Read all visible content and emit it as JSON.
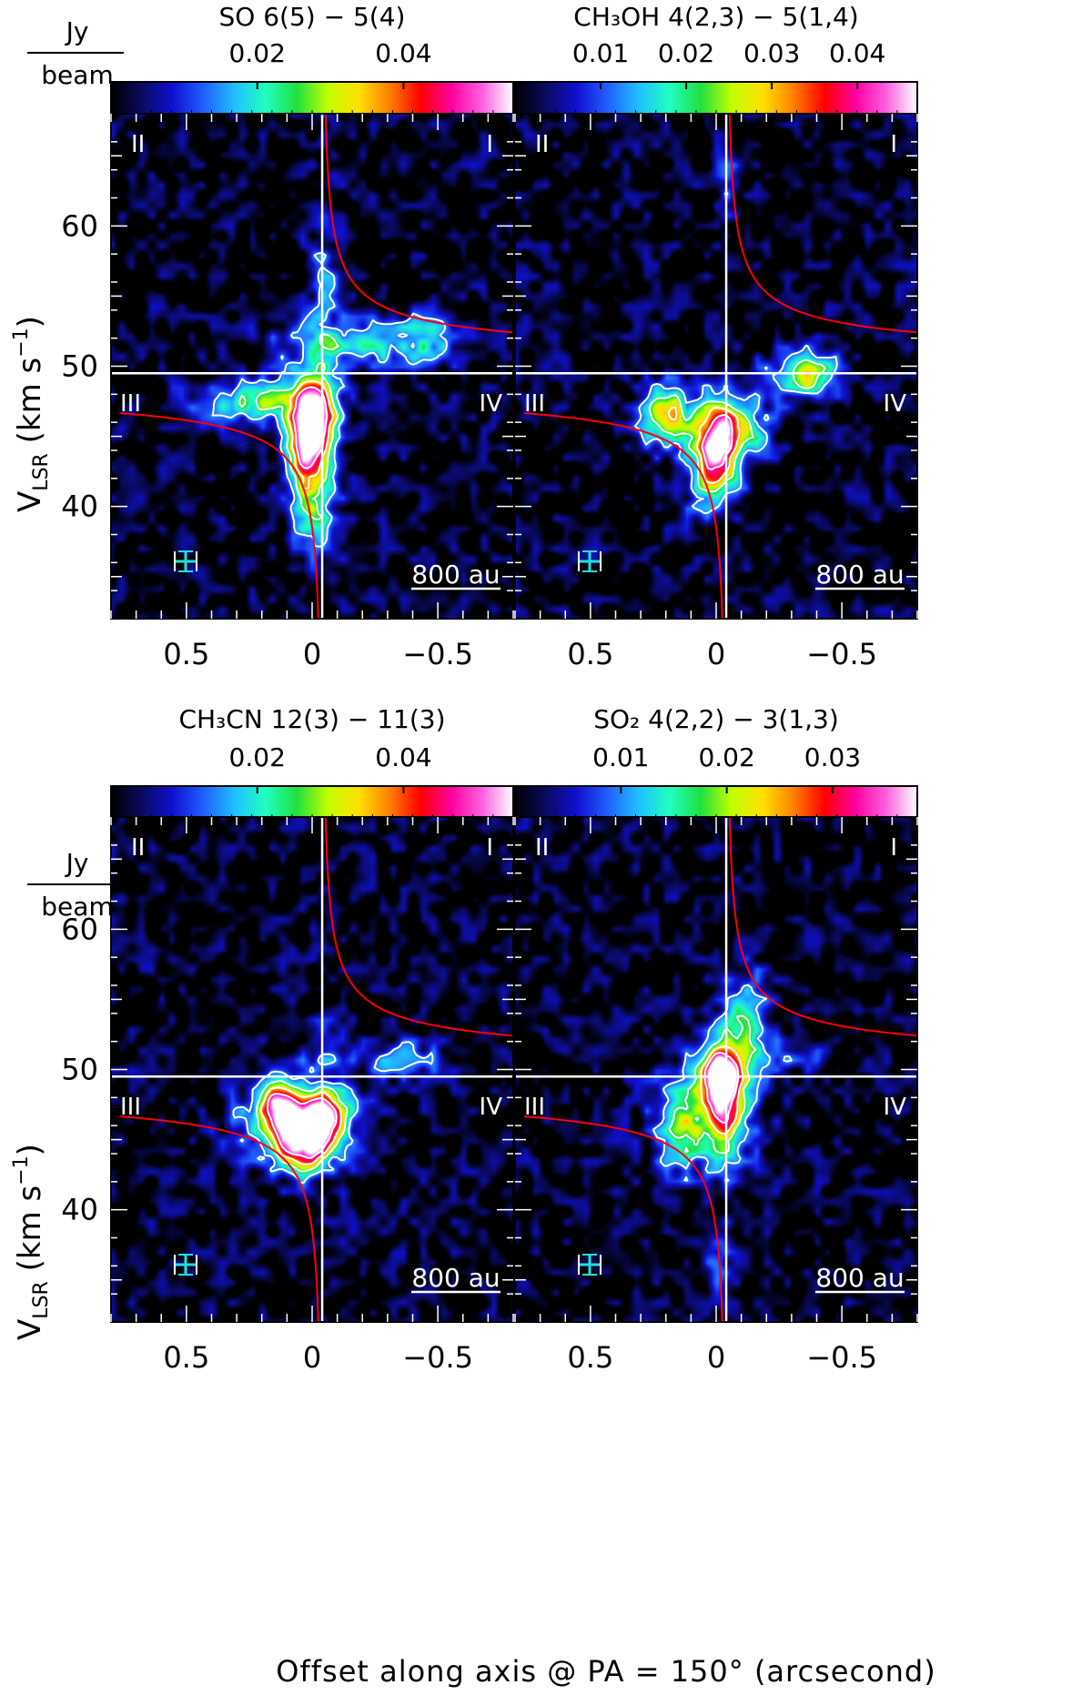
{
  "figure": {
    "xlabel": "Offset along axis @ PA = 150° (arcsecond)",
    "ylabel_main": "V",
    "ylabel_sub": "LSR",
    "ylabel_unit": "(km s",
    "ylabel_exp": "−1",
    "ylabel_close": ")",
    "unit_top": "Jy",
    "unit_bottom": "beam",
    "scalebar_label": "800 au",
    "quadrants": [
      "I",
      "II",
      "III",
      "IV"
    ],
    "colormap": [
      "#000000",
      "#0a0a60",
      "#1010d0",
      "#2060ff",
      "#20c0ff",
      "#20ffc0",
      "#20e040",
      "#c0ff00",
      "#ffe000",
      "#ff8000",
      "#ff0000",
      "#ff00a0",
      "#ff60e0",
      "#ffffff"
    ],
    "curve_color": "#ff0000",
    "axes_line_color": "#ffffff",
    "beam_color": "#20e0e0"
  },
  "chart_data": [
    {
      "type": "heatmap",
      "title": "SO  6(5) − 5(4)",
      "colorbar_ticks": [
        "0.02",
        "0.04"
      ],
      "colorbar_tick_values": [
        0.02,
        0.04
      ],
      "colorbar_range": [
        0.0,
        0.055
      ],
      "xlim": [
        0.8,
        -0.8
      ],
      "ylim": [
        32,
        68
      ],
      "xticks": [
        "0.5",
        "0",
        "−0.5"
      ],
      "xtick_values": [
        0.5,
        0,
        -0.5
      ],
      "yticks": [
        "60",
        "50",
        "40"
      ],
      "ytick_values": [
        60,
        50,
        40
      ],
      "systemic_velocity": 49.5,
      "center_offset": -0.04,
      "emission": [
        {
          "x": -0.01,
          "v": 46.0,
          "sx": 0.06,
          "sv": 2.2,
          "amp": 0.05
        },
        {
          "x": 0.02,
          "v": 44.0,
          "sx": 0.06,
          "sv": 3.0,
          "amp": 0.03
        },
        {
          "x": 0.22,
          "v": 47.5,
          "sx": 0.16,
          "sv": 1.0,
          "amp": 0.025
        },
        {
          "x": -0.15,
          "v": 51.5,
          "sx": 0.22,
          "sv": 1.3,
          "amp": 0.016
        },
        {
          "x": -0.45,
          "v": 52.0,
          "sx": 0.1,
          "sv": 1.2,
          "amp": 0.013
        },
        {
          "x": -0.05,
          "v": 56.0,
          "sx": 0.05,
          "sv": 4.0,
          "amp": 0.011
        },
        {
          "x": -0.02,
          "v": 39.5,
          "sx": 0.06,
          "sv": 2.5,
          "amp": 0.014
        }
      ]
    },
    {
      "type": "heatmap",
      "title": "CH₃OH  4(2,3) − 5(1,4)",
      "colorbar_ticks": [
        "0.01",
        "0.02",
        "0.03",
        "0.04"
      ],
      "colorbar_tick_values": [
        0.01,
        0.02,
        0.03,
        0.04
      ],
      "colorbar_range": [
        0.0,
        0.047
      ],
      "xlim": [
        0.8,
        -0.8
      ],
      "ylim": [
        32,
        68
      ],
      "xticks": [
        "0.5",
        "0",
        "−0.5"
      ],
      "xtick_values": [
        0.5,
        0,
        -0.5
      ],
      "yticks": [
        "60",
        "50",
        "40"
      ],
      "ytick_values": [
        60,
        50,
        40
      ],
      "systemic_velocity": 49.5,
      "center_offset": -0.04,
      "emission": [
        {
          "x": 0.0,
          "v": 44.5,
          "sx": 0.06,
          "sv": 2.0,
          "amp": 0.045
        },
        {
          "x": 0.2,
          "v": 46.5,
          "sx": 0.08,
          "sv": 1.5,
          "amp": 0.028
        },
        {
          "x": -0.1,
          "v": 45.5,
          "sx": 0.07,
          "sv": 1.5,
          "amp": 0.02
        },
        {
          "x": -0.38,
          "v": 49.6,
          "sx": 0.07,
          "sv": 1.0,
          "amp": 0.022
        },
        {
          "x": -0.28,
          "v": 49.0,
          "sx": 0.12,
          "sv": 1.3,
          "amp": 0.01
        },
        {
          "x": -0.05,
          "v": 63.0,
          "sx": 0.03,
          "sv": 2.0,
          "amp": 0.008
        },
        {
          "x": 0.02,
          "v": 41.5,
          "sx": 0.08,
          "sv": 1.5,
          "amp": 0.012
        }
      ]
    },
    {
      "type": "heatmap",
      "title": "CH₃CN  12(3) − 11(3)",
      "colorbar_ticks": [
        "0.02",
        "0.04"
      ],
      "colorbar_tick_values": [
        0.02,
        0.04
      ],
      "colorbar_range": [
        0.0,
        0.055
      ],
      "xlim": [
        0.8,
        -0.8
      ],
      "ylim": [
        32,
        68
      ],
      "xticks": [
        "0.5",
        "0",
        "−0.5"
      ],
      "xtick_values": [
        0.5,
        0,
        -0.5
      ],
      "yticks": [
        "60",
        "50",
        "40"
      ],
      "ytick_values": [
        60,
        50,
        40
      ],
      "systemic_velocity": 49.5,
      "center_offset": -0.04,
      "emission": [
        {
          "x": 0.12,
          "v": 47.0,
          "sx": 0.06,
          "sv": 1.3,
          "amp": 0.045
        },
        {
          "x": -0.05,
          "v": 46.5,
          "sx": 0.06,
          "sv": 1.3,
          "amp": 0.045
        },
        {
          "x": 0.03,
          "v": 44.5,
          "sx": 0.07,
          "sv": 1.3,
          "amp": 0.042
        },
        {
          "x": 0.08,
          "v": 46.5,
          "sx": 0.16,
          "sv": 2.3,
          "amp": 0.02
        },
        {
          "x": -0.35,
          "v": 50.8,
          "sx": 0.14,
          "sv": 1.0,
          "amp": 0.012
        },
        {
          "x": -0.05,
          "v": 51.5,
          "sx": 0.06,
          "sv": 1.5,
          "amp": 0.01
        }
      ]
    },
    {
      "type": "heatmap",
      "title": "SO₂  4(2,2) − 3(1,3)",
      "colorbar_ticks": [
        "0.01",
        "0.02",
        "0.03"
      ],
      "colorbar_tick_values": [
        0.01,
        0.02,
        0.03
      ],
      "colorbar_range": [
        0.0,
        0.038
      ],
      "xlim": [
        0.8,
        -0.8
      ],
      "ylim": [
        32,
        68
      ],
      "xticks": [
        "0.5",
        "0",
        "−0.5"
      ],
      "xtick_values": [
        0.5,
        0,
        -0.5
      ],
      "yticks": [
        "60",
        "50",
        "40"
      ],
      "ytick_values": [
        60,
        50,
        40
      ],
      "systemic_velocity": 49.5,
      "center_offset": -0.04,
      "emission": [
        {
          "x": -0.02,
          "v": 49.5,
          "sx": 0.05,
          "sv": 1.2,
          "amp": 0.034
        },
        {
          "x": -0.03,
          "v": 48.0,
          "sx": 0.05,
          "sv": 2.5,
          "amp": 0.022
        },
        {
          "x": 0.05,
          "v": 46.5,
          "sx": 0.13,
          "sv": 3.0,
          "amp": 0.014
        },
        {
          "x": -0.12,
          "v": 53.0,
          "sx": 0.07,
          "sv": 3.0,
          "amp": 0.013
        },
        {
          "x": 0.15,
          "v": 46.0,
          "sx": 0.05,
          "sv": 1.5,
          "amp": 0.012
        },
        {
          "x": 0.0,
          "v": 37.0,
          "sx": 0.04,
          "sv": 2.0,
          "amp": 0.008
        },
        {
          "x": -0.3,
          "v": 51.0,
          "sx": 0.1,
          "sv": 0.8,
          "amp": 0.006
        }
      ]
    }
  ]
}
